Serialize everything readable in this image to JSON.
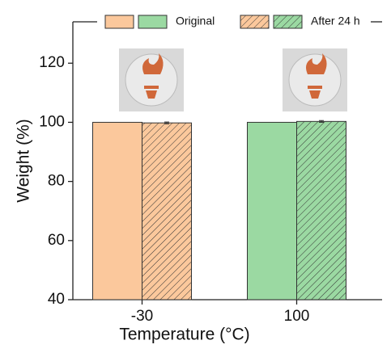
{
  "chart_data": {
    "type": "bar",
    "categories": [
      "-30",
      "100"
    ],
    "x_label": "Temperature (°C)",
    "y_label": "Weight (%)",
    "ylim": [
      40,
      134
    ],
    "yticks": [
      40,
      60,
      80,
      100,
      120
    ],
    "series": [
      {
        "name": "Original",
        "colors": [
          "#fbc89c",
          "#9bd9a2"
        ],
        "values": [
          100,
          100
        ],
        "hatch": false
      },
      {
        "name": "After 24 h",
        "colors": [
          "#fbc89c",
          "#9bd9a2"
        ],
        "values": [
          99.8,
          100.3
        ],
        "errors": [
          0.3,
          0.3
        ],
        "hatch": true
      }
    ]
  }
}
